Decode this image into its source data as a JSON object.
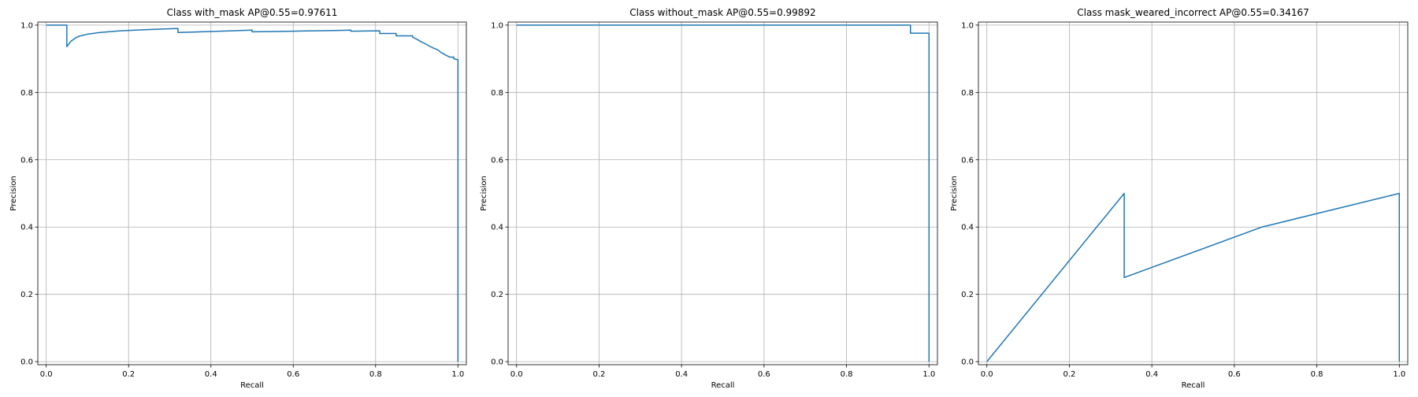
{
  "colors": {
    "series": "#1f77b4",
    "grid": "#b0b0b0",
    "background": "#ffffff"
  },
  "chart_data": [
    {
      "type": "line",
      "title": "Class with_mask AP@0.55=0.97611",
      "xlabel": "Recall",
      "ylabel": "Precision",
      "xlim": [
        0,
        1
      ],
      "ylim": [
        0,
        1
      ],
      "grid": true,
      "x_ticks": [
        "0.0",
        "0.2",
        "0.4",
        "0.6",
        "0.8",
        "1.0"
      ],
      "y_ticks": [
        "0.0",
        "0.2",
        "0.4",
        "0.6",
        "0.8",
        "1.0"
      ],
      "series": [
        {
          "points": [
            [
              0.0,
              1.0
            ],
            [
              0.05,
              1.0
            ],
            [
              0.05,
              0.936
            ],
            [
              0.06,
              0.952
            ],
            [
              0.07,
              0.961
            ],
            [
              0.08,
              0.967
            ],
            [
              0.1,
              0.973
            ],
            [
              0.13,
              0.978
            ],
            [
              0.18,
              0.983
            ],
            [
              0.25,
              0.987
            ],
            [
              0.32,
              0.99
            ],
            [
              0.32,
              0.978
            ],
            [
              0.4,
              0.981
            ],
            [
              0.5,
              0.985
            ],
            [
              0.5,
              0.98
            ],
            [
              0.6,
              0.982
            ],
            [
              0.7,
              0.984
            ],
            [
              0.74,
              0.985
            ],
            [
              0.74,
              0.982
            ],
            [
              0.81,
              0.983
            ],
            [
              0.81,
              0.975
            ],
            [
              0.85,
              0.975
            ],
            [
              0.85,
              0.968
            ],
            [
              0.89,
              0.968
            ],
            [
              0.89,
              0.964
            ],
            [
              0.9,
              0.958
            ],
            [
              0.91,
              0.951
            ],
            [
              0.92,
              0.945
            ],
            [
              0.93,
              0.938
            ],
            [
              0.94,
              0.932
            ],
            [
              0.95,
              0.927
            ],
            [
              0.96,
              0.918
            ],
            [
              0.97,
              0.911
            ],
            [
              0.98,
              0.905
            ],
            [
              0.99,
              0.905
            ],
            [
              0.99,
              0.9
            ],
            [
              1.0,
              0.897
            ],
            [
              1.0,
              0.0
            ]
          ]
        }
      ]
    },
    {
      "type": "line",
      "title": "Class without_mask AP@0.55=0.99892",
      "xlabel": "Recall",
      "ylabel": "Precision",
      "xlim": [
        0,
        1
      ],
      "ylim": [
        0,
        1
      ],
      "grid": true,
      "x_ticks": [
        "0.0",
        "0.2",
        "0.4",
        "0.6",
        "0.8",
        "1.0"
      ],
      "y_ticks": [
        "0.0",
        "0.2",
        "0.4",
        "0.6",
        "0.8",
        "1.0"
      ],
      "series": [
        {
          "points": [
            [
              0.0,
              1.0
            ],
            [
              0.955,
              1.0
            ],
            [
              0.955,
              0.976
            ],
            [
              1.0,
              0.976
            ],
            [
              1.0,
              0.0
            ]
          ]
        }
      ]
    },
    {
      "type": "line",
      "title": "Class mask_weared_incorrect AP@0.55=0.34167",
      "xlabel": "Recall",
      "ylabel": "Precision",
      "xlim": [
        0,
        1
      ],
      "ylim": [
        0,
        1
      ],
      "grid": true,
      "x_ticks": [
        "0.0",
        "0.2",
        "0.4",
        "0.6",
        "0.8",
        "1.0"
      ],
      "y_ticks": [
        "0.0",
        "0.2",
        "0.4",
        "0.6",
        "0.8",
        "1.0"
      ],
      "series": [
        {
          "points": [
            [
              0.0,
              0.0
            ],
            [
              0.333,
              0.5
            ],
            [
              0.333,
              0.25
            ],
            [
              0.667,
              0.4
            ],
            [
              1.0,
              0.5
            ],
            [
              1.0,
              0.0
            ]
          ]
        }
      ]
    }
  ]
}
